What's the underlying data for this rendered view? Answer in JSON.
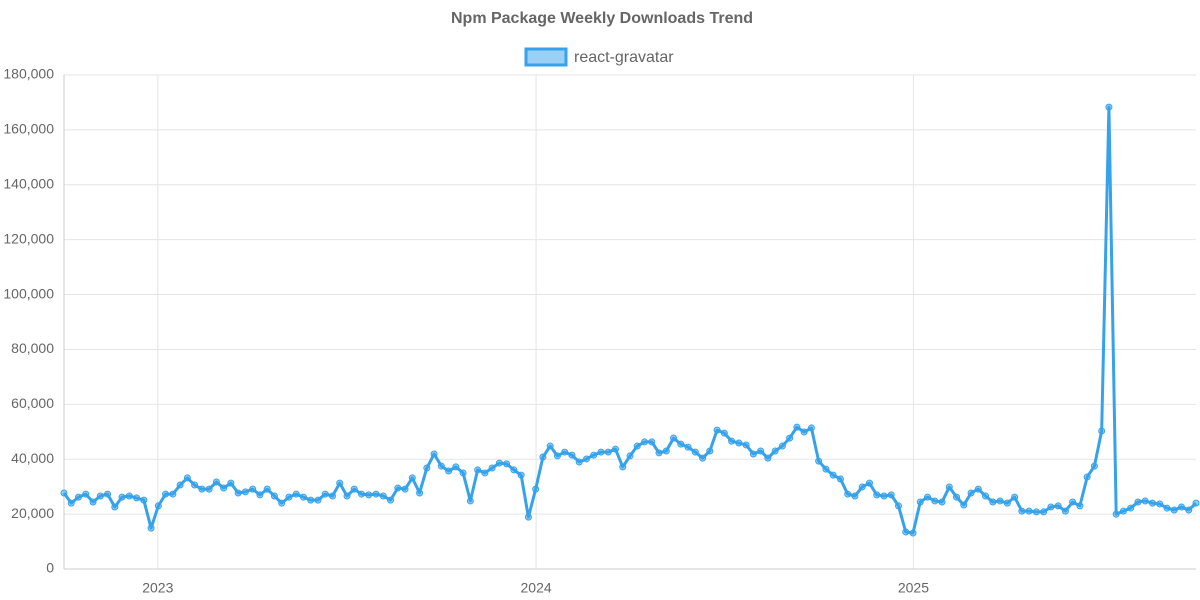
{
  "chart_data": {
    "type": "line",
    "title": "Npm Package Weekly Downloads Trend",
    "series": [
      {
        "name": "react-gravatar",
        "color": "#36a2eb",
        "values": [
          27700,
          24000,
          26200,
          27300,
          24400,
          26600,
          27300,
          22600,
          26200,
          26600,
          25900,
          25100,
          14900,
          23000,
          27300,
          27300,
          30600,
          33200,
          30600,
          29100,
          29100,
          31700,
          29500,
          31300,
          27700,
          28100,
          29100,
          27000,
          29100,
          26600,
          24000,
          26200,
          27300,
          26200,
          25100,
          25100,
          27300,
          26600,
          31300,
          26600,
          29100,
          27300,
          27000,
          27300,
          26600,
          25100,
          29500,
          29100,
          33200,
          27700,
          36800,
          41900,
          37500,
          35700,
          37200,
          35000,
          24800,
          36100,
          35000,
          36800,
          38600,
          38300,
          36100,
          34200,
          18900,
          29100,
          40800,
          44800,
          41200,
          42600,
          41500,
          39000,
          40100,
          41500,
          42600,
          42600,
          43700,
          37200,
          41200,
          44800,
          46300,
          46300,
          42300,
          43000,
          47700,
          45500,
          44400,
          42600,
          40400,
          43000,
          50600,
          49500,
          46600,
          45900,
          45200,
          41900,
          43000,
          40400,
          43000,
          44800,
          47700,
          51700,
          49900,
          51400,
          39300,
          36400,
          34200,
          32800,
          27300,
          26600,
          29900,
          31300,
          27000,
          26600,
          27000,
          23000,
          13500,
          13100,
          24400,
          26200,
          24800,
          24400,
          29900,
          26200,
          23300,
          27700,
          29100,
          26600,
          24400,
          24800,
          24000,
          26200,
          21100,
          21100,
          20800,
          20800,
          22600,
          23000,
          21100,
          24400,
          23000,
          33500,
          37500,
          50300,
          168300,
          20000,
          21100,
          22200,
          24400,
          24800,
          24000,
          23700,
          22200,
          21500,
          22600,
          21500,
          24000
        ]
      }
    ],
    "xlim": [
      0,
      156
    ],
    "xticks": [
      {
        "value": 12.93,
        "label": "2023"
      },
      {
        "value": 65.06,
        "label": "2024"
      },
      {
        "value": 117.06,
        "label": "2025"
      }
    ],
    "ylim": [
      0,
      180000
    ],
    "yticks": [
      0,
      {
        "value": 20000,
        "label": "20,000"
      },
      {
        "value": 40000,
        "label": "40,000"
      },
      {
        "value": 60000,
        "label": "60,000"
      },
      {
        "value": 80000,
        "label": "80,000"
      },
      {
        "value": 100000,
        "label": "100,000"
      },
      {
        "value": 120000,
        "label": "120,000"
      },
      {
        "value": 140000,
        "label": "140,000"
      },
      {
        "value": 160000,
        "label": "160,000"
      },
      {
        "value": 180000,
        "label": "180,000"
      }
    ],
    "grid": true,
    "legend": "top"
  }
}
